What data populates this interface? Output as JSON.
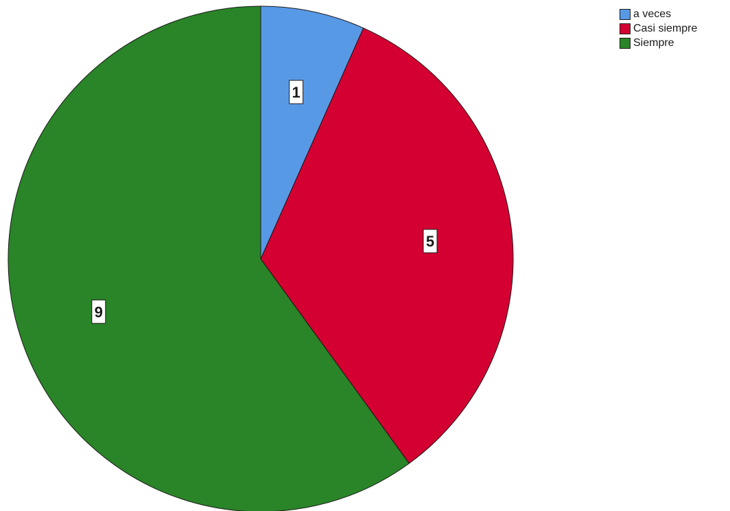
{
  "chart_data": {
    "type": "pie",
    "categories": [
      "a veces",
      "Casi siempre",
      "Siempre"
    ],
    "values": [
      1,
      5,
      9
    ],
    "colors": [
      "#5899e6",
      "#d40031",
      "#2a8428"
    ],
    "data_labels": [
      "1",
      "5",
      "9"
    ],
    "start_angle_deg": 0,
    "direction": "clockwise",
    "legend_position": "top-right",
    "title": ""
  }
}
